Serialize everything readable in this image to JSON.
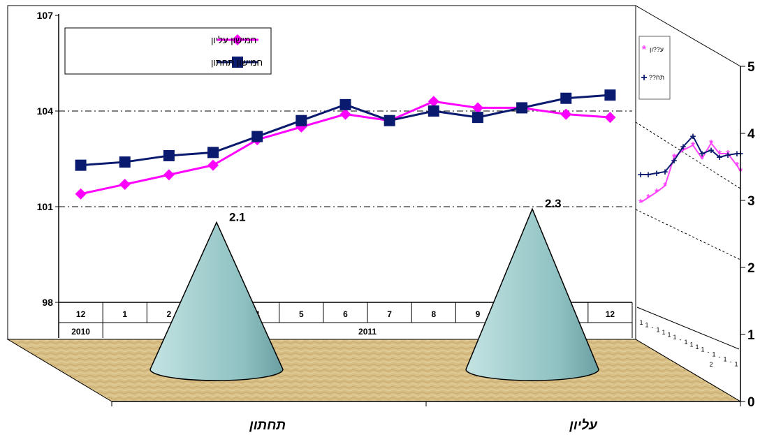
{
  "chart_data": [
    {
      "type": "bar",
      "variant": "3d-cone",
      "categories": [
        "עליון",
        "תחתון"
      ],
      "values": [
        2.3,
        2.1
      ],
      "data_labels": [
        "2.3",
        "2.1"
      ],
      "yticks": [
        "0",
        "1",
        "2",
        "3",
        "4",
        "5"
      ],
      "ylim": [
        0,
        5
      ],
      "wall_image": {
        "series_markers": [
          "*",
          "+"
        ],
        "legend": [
          "ע??ון",
          "תח??"
        ],
        "x_tick_marks": [
          "1",
          "1",
          "-",
          "1",
          "1",
          "1",
          "1",
          "-",
          "1",
          "1",
          "1",
          "1",
          "-",
          "1",
          "-",
          "1",
          "-",
          "1"
        ],
        "x_group_label": "2"
      },
      "grid": true
    },
    {
      "type": "line",
      "months": [
        "12",
        "1",
        "2",
        "3",
        "4",
        "5",
        "6",
        "7",
        "8",
        "9",
        "10",
        "11",
        "12"
      ],
      "years": [
        "2010",
        "2011"
      ],
      "series": [
        {
          "name": "חמישון עליון",
          "color": "#ff00ff",
          "marker": "diamond",
          "values": [
            101.4,
            101.7,
            102.0,
            102.3,
            103.1,
            103.5,
            103.9,
            103.7,
            104.3,
            104.1,
            104.1,
            103.9,
            103.8
          ]
        },
        {
          "name": "חמישון תחתון",
          "color": "#0a1a6e",
          "marker": "square",
          "values": [
            102.3,
            102.4,
            102.6,
            102.7,
            103.2,
            103.7,
            104.2,
            103.7,
            104.0,
            103.8,
            104.1,
            104.4,
            104.5
          ]
        }
      ],
      "yticks": [
        "98",
        "101",
        "104",
        "107"
      ],
      "ylim": [
        98,
        107
      ],
      "grid": true
    }
  ]
}
